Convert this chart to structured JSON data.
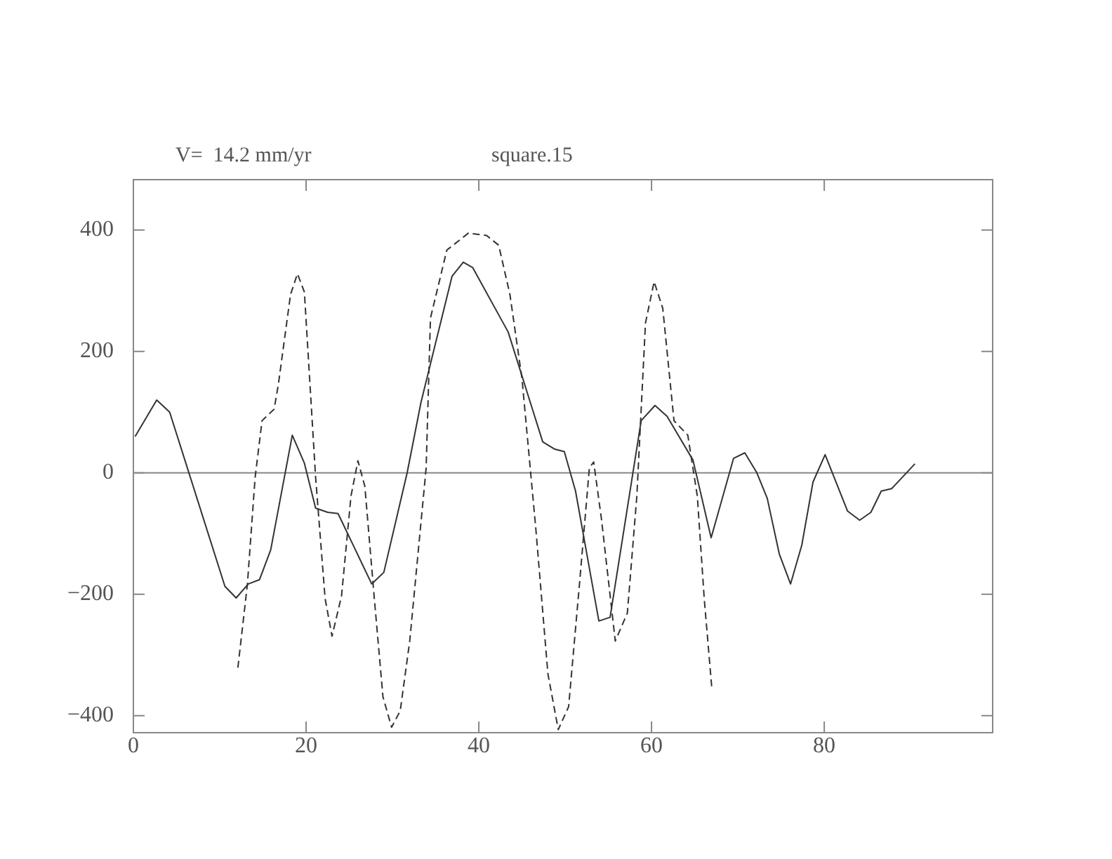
{
  "chart_data": {
    "type": "line",
    "title": "V=  14.2 mm/yr",
    "subtitle": "square.15",
    "xlim": [
      0,
      99.5
    ],
    "xticks": [
      0,
      20,
      40,
      60,
      80
    ],
    "ylim": [
      -428,
      483
    ],
    "yticks": [
      -400,
      -200,
      0,
      200,
      400
    ],
    "grid": false,
    "legend": false,
    "marker": "none",
    "ref_lines": [
      {
        "axis": "y",
        "value": 0,
        "color": "#888888"
      }
    ],
    "series": [
      {
        "color": "#333333",
        "line_style": "solid",
        "x": [
          0.2,
          2.7,
          4.2,
          10.6,
          11.9,
          13.3,
          14.6,
          15.9,
          18.4,
          19.8,
          21.1,
          22.5,
          23.7,
          27.6,
          29,
          31.7,
          33.3,
          36.9,
          38.2,
          39.3,
          43.4,
          47.4,
          48.8,
          49.9,
          51.2,
          53.9,
          55.2,
          58.8,
          60.4,
          61.8,
          63.1,
          64.8,
          66.9,
          69.5,
          70.8,
          72.2,
          73.4,
          74.8,
          76.1,
          77.4,
          78.7,
          80.1,
          82.7,
          84.1,
          85.4,
          86.6,
          87.8,
          90.5
        ],
        "values": [
          60,
          120,
          100,
          -187,
          -206,
          -183,
          -176,
          -127,
          62,
          16,
          -58,
          -65,
          -67,
          -183,
          -164,
          0,
          116,
          324,
          347,
          338,
          232,
          51,
          39,
          35,
          -30,
          -244,
          -238,
          86,
          111,
          93,
          62,
          21,
          -107,
          24,
          33,
          0,
          -42,
          -134,
          -183,
          -119,
          -15,
          30,
          -63,
          -78,
          -65,
          -30,
          -26,
          15
        ]
      },
      {
        "color": "#333333",
        "line_style": "dashed",
        "x": [
          12.1,
          13.2,
          14.1,
          14.9,
          16.3,
          16.8,
          18.2,
          19,
          19.8,
          21.1,
          22.2,
          23,
          24.1,
          25.2,
          26,
          26.8,
          27.9,
          28.9,
          29.9,
          30.9,
          32,
          33.9,
          34.4,
          36.3,
          38.8,
          40.9,
          42.3,
          43.6,
          45,
          46.6,
          48,
          49.2,
          50.4,
          51.7,
          52.8,
          53.3,
          54.2,
          55.8,
          57.2,
          58.3,
          59.3,
          60.3,
          61.3,
          62.6,
          64.2,
          65.3,
          66.1,
          67
        ],
        "values": [
          -321,
          -184,
          -7,
          86,
          105,
          147,
          294,
          328,
          298,
          -7,
          -207,
          -269,
          -203,
          -38,
          20,
          -22,
          -207,
          -369,
          -419,
          -392,
          -277,
          8,
          255,
          367,
          395,
          391,
          375,
          294,
          155,
          -92,
          -331,
          -423,
          -385,
          -176,
          8,
          18,
          -76,
          -277,
          -231,
          -38,
          247,
          315,
          271,
          86,
          62,
          -38,
          -207,
          -358
        ]
      }
    ]
  }
}
